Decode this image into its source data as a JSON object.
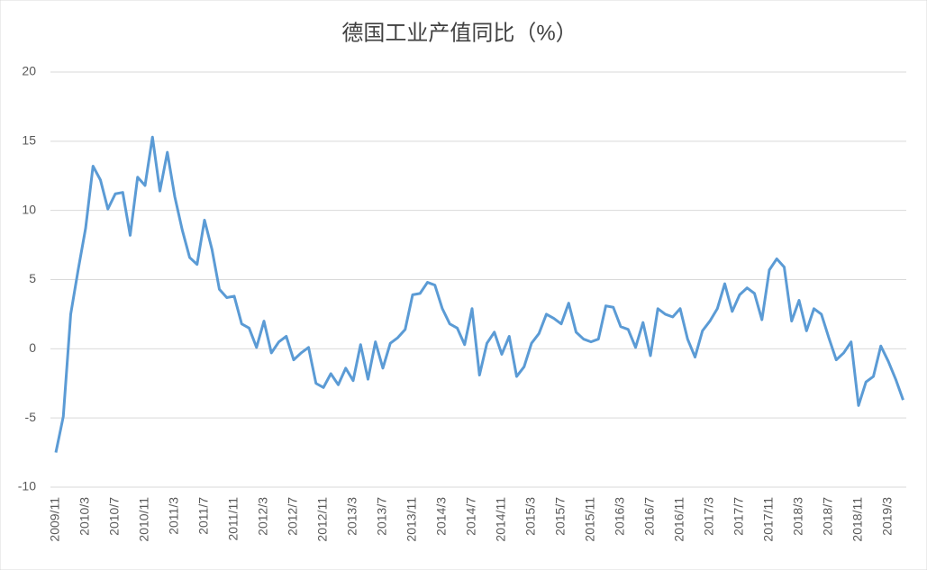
{
  "chart_data": {
    "type": "line",
    "title": "德国工业产值同比（%）",
    "categories": [
      "2009/11",
      null,
      null,
      null,
      "2010/3",
      null,
      null,
      null,
      "2010/7",
      null,
      null,
      null,
      "2010/11",
      null,
      null,
      null,
      "2011/3",
      null,
      null,
      null,
      "2011/7",
      null,
      null,
      null,
      "2011/11",
      null,
      null,
      null,
      "2012/3",
      null,
      null,
      null,
      "2012/7",
      null,
      null,
      null,
      "2012/11",
      null,
      null,
      null,
      "2013/3",
      null,
      null,
      null,
      "2013/7",
      null,
      null,
      null,
      "2013/11",
      null,
      null,
      null,
      "2014/3",
      null,
      null,
      null,
      "2014/7",
      null,
      null,
      null,
      "2014/11",
      null,
      null,
      null,
      "2015/3",
      null,
      null,
      null,
      "2015/7",
      null,
      null,
      null,
      "2015/11",
      null,
      null,
      null,
      "2016/3",
      null,
      null,
      null,
      "2016/7",
      null,
      null,
      null,
      "2016/11",
      null,
      null,
      null,
      "2017/3",
      null,
      null,
      null,
      "2017/7",
      null,
      null,
      null,
      "2017/11",
      null,
      null,
      null,
      "2018/3",
      null,
      null,
      null,
      "2018/7",
      null,
      null,
      null,
      "2018/11",
      null,
      null,
      null,
      "2019/3",
      null,
      null
    ],
    "series": [
      {
        "name": "德国工业产值同比",
        "color": "#5b9bd5",
        "values": [
          -7.5,
          -4.9,
          2.5,
          5.7,
          8.7,
          13.2,
          12.2,
          10.1,
          11.2,
          11.3,
          8.2,
          12.4,
          11.8,
          15.3,
          11.4,
          14.2,
          11.0,
          8.6,
          6.6,
          6.1,
          9.3,
          7.2,
          4.3,
          3.7,
          3.8,
          1.8,
          1.5,
          0.1,
          2.0,
          -0.3,
          0.5,
          0.9,
          -0.8,
          -0.3,
          0.1,
          -2.5,
          -2.8,
          -1.8,
          -2.6,
          -1.4,
          -2.3,
          0.3,
          -2.2,
          0.5,
          -1.4,
          0.4,
          0.8,
          1.4,
          3.9,
          4.0,
          4.8,
          4.6,
          2.9,
          1.8,
          1.5,
          0.3,
          2.9,
          -1.9,
          0.4,
          1.2,
          -0.4,
          0.9,
          -2.0,
          -1.3,
          0.4,
          1.1,
          2.5,
          2.2,
          1.8,
          3.3,
          1.2,
          0.7,
          0.5,
          0.7,
          3.1,
          3.0,
          1.6,
          1.4,
          0.1,
          1.9,
          -0.5,
          2.9,
          2.5,
          2.3,
          2.9,
          0.7,
          -0.6,
          1.3,
          2.0,
          2.9,
          4.7,
          2.7,
          3.9,
          4.4,
          4.0,
          2.1,
          5.7,
          6.5,
          5.9,
          2.0,
          3.5,
          1.3,
          2.9,
          2.5,
          0.8,
          -0.8,
          -0.3,
          0.5,
          -4.1,
          -2.4,
          -2.0,
          0.2,
          -0.9,
          -2.2,
          -3.7
        ]
      }
    ],
    "ylim": [
      -10,
      20
    ],
    "yticks": [
      -10,
      -5,
      0,
      5,
      10,
      15,
      20
    ],
    "grid": true
  }
}
